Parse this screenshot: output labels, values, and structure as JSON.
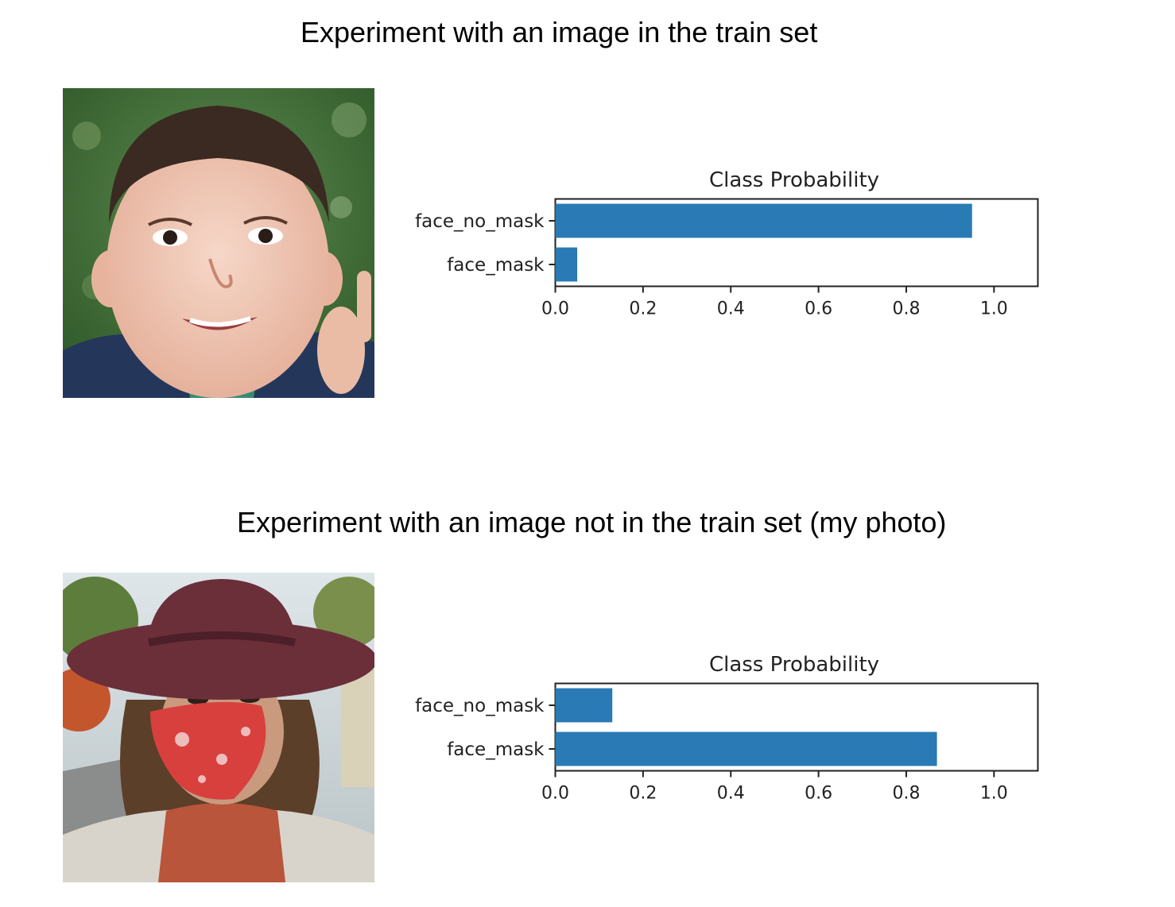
{
  "headings": {
    "first": "Experiment with an image in the train set",
    "second": "Experiment with an image not in the train set (my photo)"
  },
  "colors": {
    "bar": "#2a7ab5"
  },
  "photos": [
    {
      "icon": "boy-portrait-photo"
    },
    {
      "icon": "woman-in-mask-and-hat-photo"
    }
  ],
  "chart_data": [
    {
      "type": "bar",
      "orientation": "horizontal",
      "title": "Class Probability",
      "categories": [
        "face_no_mask",
        "face_mask"
      ],
      "values": [
        0.95,
        0.05
      ],
      "xlim": [
        0.0,
        1.1
      ],
      "xticks": [
        "0.0",
        "0.2",
        "0.4",
        "0.6",
        "0.8",
        "1.0"
      ],
      "grid": false
    },
    {
      "type": "bar",
      "orientation": "horizontal",
      "title": "Class Probability",
      "categories": [
        "face_no_mask",
        "face_mask"
      ],
      "values": [
        0.13,
        0.87
      ],
      "xlim": [
        0.0,
        1.1
      ],
      "xticks": [
        "0.0",
        "0.2",
        "0.4",
        "0.6",
        "0.8",
        "1.0"
      ],
      "grid": false
    }
  ]
}
